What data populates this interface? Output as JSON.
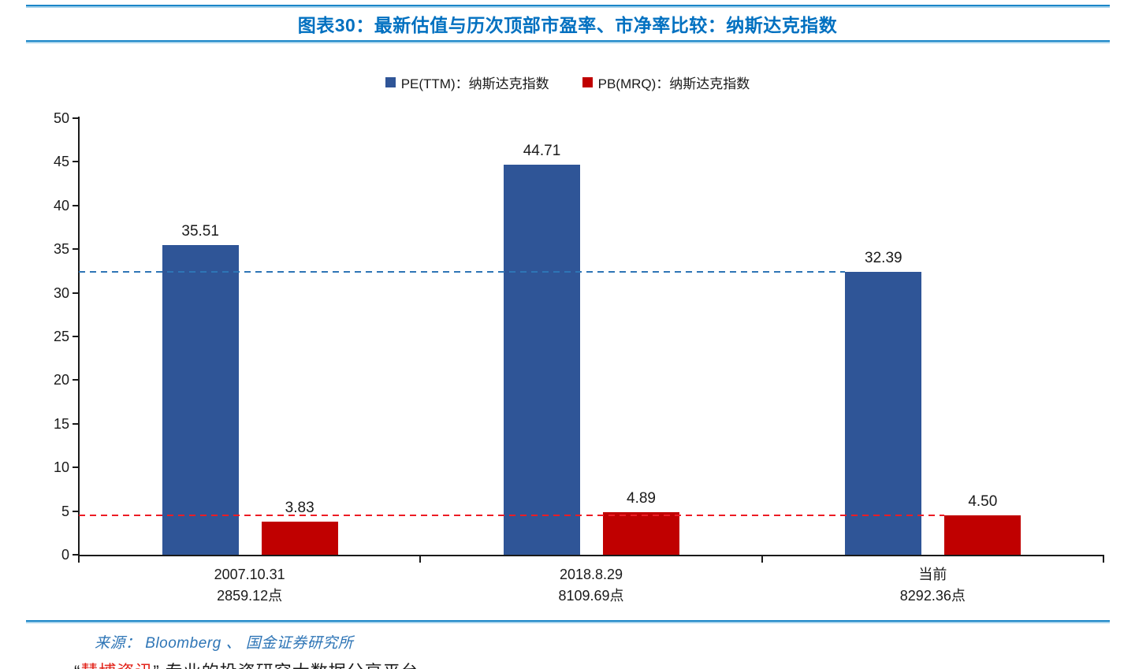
{
  "header": {
    "title": "图表30：最新估值与历次顶部市盈率、市净率比较：纳斯达克指数"
  },
  "legend": [
    {
      "label": "PE(TTM)：纳斯达克指数",
      "color": "#2f5597"
    },
    {
      "label": "PB(MRQ)：纳斯达克指数",
      "color": "#c00000"
    }
  ],
  "chart_data": {
    "type": "bar",
    "title": "图表30：最新估值与历次顶部市盈率、市净率比较：纳斯达克指数",
    "categories": [
      [
        "2007.10.31",
        "2859.12点"
      ],
      [
        "2018.8.29",
        "8109.69点"
      ],
      [
        "当前",
        "8292.36点"
      ]
    ],
    "series": [
      {
        "name": "PE(TTM)：纳斯达克指数",
        "color": "#2f5597",
        "values": [
          35.51,
          44.71,
          32.39
        ]
      },
      {
        "name": "PB(MRQ)：纳斯达克指数",
        "color": "#c00000",
        "values": [
          3.83,
          4.89,
          4.5
        ]
      }
    ],
    "ylim": [
      0,
      50
    ],
    "ytick_step": 5,
    "grid": false,
    "legend_position": "top-center",
    "reference_lines": [
      {
        "value": 32.39,
        "color": "#2e75b6",
        "style": "dashed",
        "meaning": "current PE level"
      },
      {
        "value": 4.5,
        "color": "#ec1c24",
        "style": "dashed",
        "meaning": "current PB level"
      }
    ]
  },
  "footer": {
    "source": "来源： Bloomberg 、 国金证券研究所",
    "quote_open": "“",
    "brand": "慧博资讯",
    "rest": "” 专业的投资研究大数据分享平台"
  }
}
